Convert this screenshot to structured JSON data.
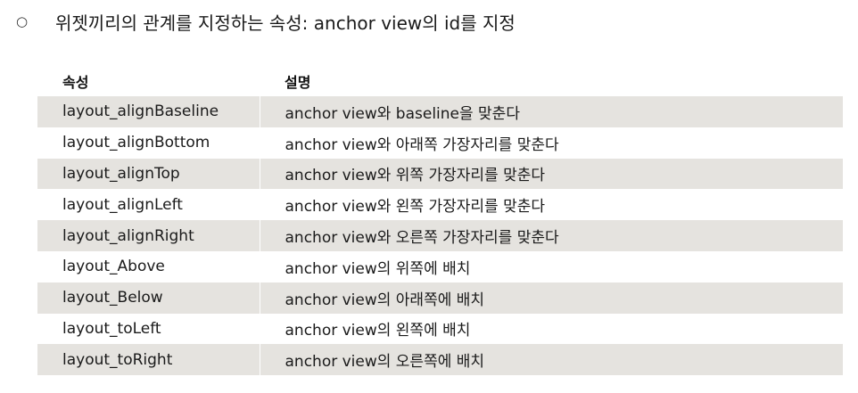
{
  "bullet": {
    "glyph": "○",
    "text": "위젯끼리의 관계를 지정하는 속성: anchor view의 id를 지정"
  },
  "table": {
    "headers": [
      "속성",
      "설명"
    ],
    "rows": [
      {
        "property": "layout_alignBaseline",
        "description": "anchor view와 baseline을 맞춘다"
      },
      {
        "property": "layout_alignBottom",
        "description": "anchor view와 아래쪽 가장자리를 맞춘다"
      },
      {
        "property": "layout_alignTop",
        "description": "anchor view와 위쪽 가장자리를 맞춘다"
      },
      {
        "property": "layout_alignLeft",
        "description": "anchor view와 왼쪽 가장자리를 맞춘다"
      },
      {
        "property": "layout_alignRight",
        "description": "anchor view와 오른쪽 가장자리를 맞춘다"
      },
      {
        "property": "layout_Above",
        "description": "anchor view의 위쪽에 배치"
      },
      {
        "property": "layout_Below",
        "description": "anchor view의 아래쪽에 배치"
      },
      {
        "property": "layout_toLeft",
        "description": "anchor view의 왼쪽에 배치"
      },
      {
        "property": "layout_toRight",
        "description": "anchor view의 오른쪽에 배치"
      }
    ]
  },
  "colors": {
    "shaded_row": "#e5e3df",
    "text": "#1a1a1a"
  }
}
